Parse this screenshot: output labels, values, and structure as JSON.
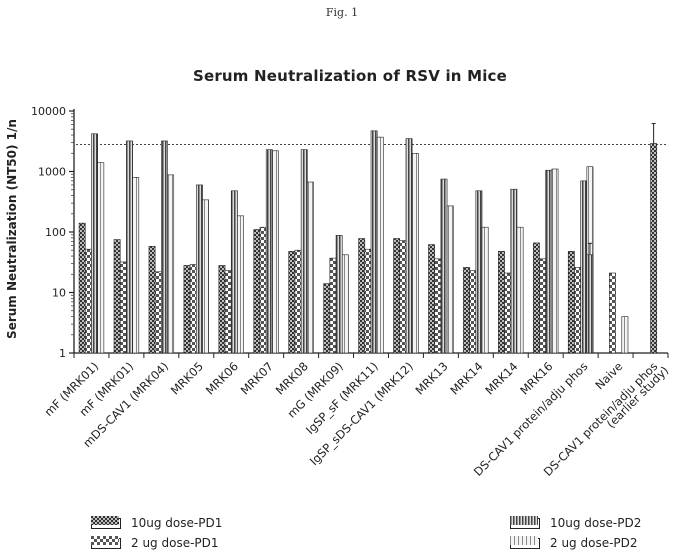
{
  "figure_label": "Fig. 1",
  "chart_data": {
    "type": "bar",
    "title": "Serum Neutralization of RSV in Mice",
    "ylabel": "Serum Neutralization (NT50) 1/n",
    "xlabel": "",
    "yscale": "log",
    "ylim": [
      1,
      10000
    ],
    "yticks": [
      "1",
      "10",
      "100",
      "1000",
      "10000"
    ],
    "reference_line": 2800,
    "grid": false,
    "legend_position": "bottom",
    "categories": [
      "mF (MRK01)",
      "mF (MRK01)",
      "mDS-CAV1 (MRK04)",
      "MRK05",
      "MRK06",
      "MRK07",
      "MRK08",
      "mG (MRK09)",
      "IgSP_sF (MRK11)",
      "IgSP_sDS-CAV1 (MRK12)",
      "MRK13",
      "MRK14",
      "MRK14",
      "MRK16",
      "DS-CAV1 protein/adju phos",
      "Naive",
      "DS-CAV1 protein/adju phos\n(earlier study)"
    ],
    "series": [
      {
        "name": "10ug dose-PD1",
        "color": "#4a4a4a",
        "values": [
          140,
          75,
          58,
          28,
          28,
          110,
          48,
          14,
          78,
          78,
          62,
          26,
          48,
          66,
          48,
          null,
          null
        ]
      },
      {
        "name": "2 ug dose-PD1",
        "color": "#7a7a7a",
        "values": [
          52,
          32,
          22,
          29,
          23,
          120,
          50,
          37,
          52,
          72,
          36,
          23,
          21,
          36,
          26,
          21,
          null
        ]
      },
      {
        "name": "10ug dose-PD2",
        "color": "#3a3a3a",
        "values": [
          4200,
          3200,
          3200,
          600,
          480,
          2300,
          2300,
          88,
          4700,
          3500,
          750,
          480,
          510,
          1050,
          700,
          null,
          null
        ]
      },
      {
        "name": "2 ug dose-PD2",
        "color": "#9a9a9a",
        "values": [
          1400,
          800,
          880,
          340,
          185,
          2200,
          670,
          42,
          3700,
          2000,
          270,
          120,
          120,
          1100,
          1200,
          4,
          null
        ]
      }
    ],
    "extra_bars": [
      {
        "category": "DS-CAV1 protein/adju phos",
        "value": 42,
        "error_high": 65
      },
      {
        "category": "DS-CAV1 protein/adju phos\n(earlier study)",
        "value": 2900,
        "error_high": 6200
      }
    ]
  }
}
